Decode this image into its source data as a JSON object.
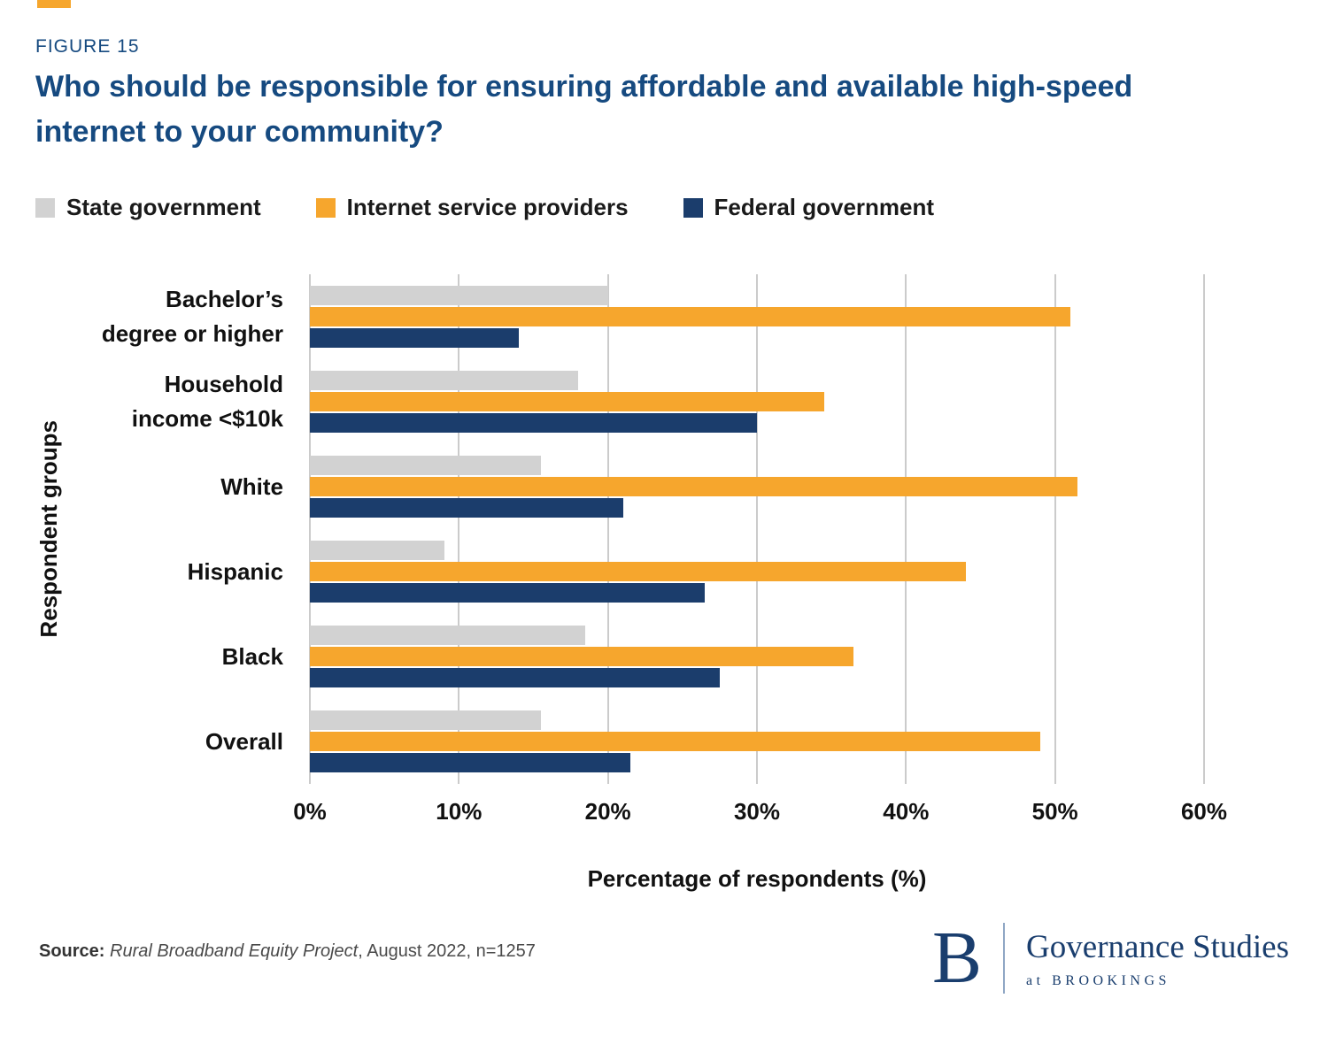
{
  "accent_color": "#F6A62D",
  "figure": {
    "eyebrow": "FIGURE 15",
    "title": "Who should be responsible for ensuring affordable and available high-speed internet to your community?"
  },
  "chart_data": {
    "type": "bar",
    "orientation": "horizontal",
    "title": "Who should be responsible for ensuring affordable and available high-speed internet to your community?",
    "categories": [
      "Bachelor’s degree or higher",
      "Household income <$10k",
      "White",
      "Hispanic",
      "Black",
      "Overall"
    ],
    "categories_display": [
      "Bachelor’s\ndegree or higher",
      "Household\nincome <$10k",
      "White",
      "Hispanic",
      "Black",
      "Overall"
    ],
    "series": [
      {
        "name": "State government",
        "color": "#D2D2D2",
        "values": [
          20,
          18,
          15.5,
          9,
          18.5,
          15.5
        ]
      },
      {
        "name": "Internet service providers",
        "color": "#F6A62D",
        "values": [
          51,
          34.5,
          51.5,
          44,
          36.5,
          49
        ]
      },
      {
        "name": "Federal government",
        "color": "#1B3D6C",
        "values": [
          14,
          30,
          21,
          26.5,
          27.5,
          21.5
        ]
      }
    ],
    "xlabel": "Percentage of respondents (%)",
    "ylabel": "Respondent groups",
    "xlim": [
      0,
      60
    ],
    "xticks": [
      0,
      10,
      20,
      30,
      40,
      50,
      60
    ],
    "xtick_suffix": "%",
    "grid": true,
    "legend_position": "top"
  },
  "source": {
    "prefix": "Source: ",
    "name": "Rural Broadband Equity Project",
    "rest": ", August 2022, n=1257"
  },
  "logo": {
    "letter": "B",
    "line1": "Governance Studies",
    "line2": "at BROOKINGS"
  }
}
